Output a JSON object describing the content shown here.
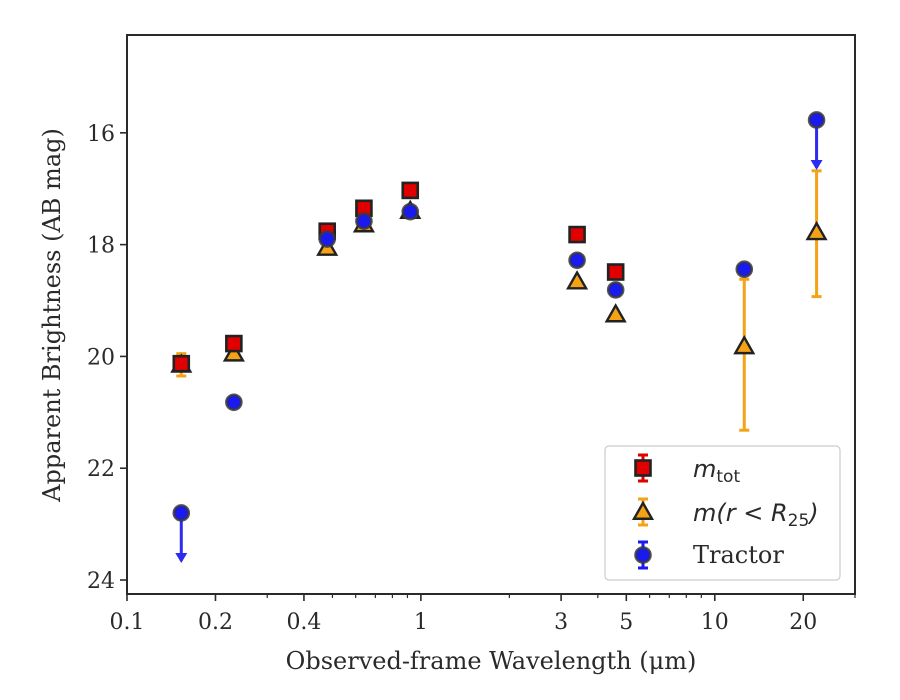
{
  "chart_data": {
    "type": "scatter",
    "xlabel": "Observed-frame Wavelength (μm)",
    "ylabel": "Apparent Brightness (AB mag)",
    "xscale": "log",
    "xlim": [
      0.1,
      30
    ],
    "ylim": [
      24.25,
      14.25
    ],
    "y_inverted": true,
    "x_ticks": [
      {
        "value": 0.1,
        "label": "0.1"
      },
      {
        "value": 0.2,
        "label": "0.2"
      },
      {
        "value": 0.4,
        "label": "0.4"
      },
      {
        "value": 1,
        "label": "1"
      },
      {
        "value": 3,
        "label": "3"
      },
      {
        "value": 5,
        "label": "5"
      },
      {
        "value": 10,
        "label": "10"
      },
      {
        "value": 20,
        "label": "20"
      }
    ],
    "y_ticks": [
      16,
      18,
      20,
      22,
      24
    ],
    "grid": false,
    "legend_position": "bottom-right",
    "series": [
      {
        "name": "m_tot",
        "marker": "square",
        "color": "#e00000",
        "points": [
          {
            "x": 0.153,
            "y": 20.13,
            "err": 0.12
          },
          {
            "x": 0.231,
            "y": 19.77
          },
          {
            "x": 0.48,
            "y": 17.76
          },
          {
            "x": 0.64,
            "y": 17.35
          },
          {
            "x": 0.92,
            "y": 17.03
          },
          {
            "x": 3.4,
            "y": 17.82
          },
          {
            "x": 4.6,
            "y": 18.49
          }
        ]
      },
      {
        "name": "m(r < R25)",
        "marker": "triangle",
        "color": "#f5a316",
        "points": [
          {
            "x": 0.153,
            "y": 20.15,
            "err": 0.2
          },
          {
            "x": 0.231,
            "y": 19.95
          },
          {
            "x": 0.48,
            "y": 18.06
          },
          {
            "x": 0.64,
            "y": 17.64
          },
          {
            "x": 0.92,
            "y": 17.4
          },
          {
            "x": 3.4,
            "y": 18.66
          },
          {
            "x": 4.6,
            "y": 19.25
          },
          {
            "x": 12.6,
            "y": 19.82,
            "err_up": 1.2,
            "err_down": 1.5
          },
          {
            "x": 22.2,
            "y": 17.78,
            "err_up": 1.1,
            "err_down": 1.15
          }
        ]
      },
      {
        "name": "Tractor",
        "marker": "circle",
        "color": "#1a1aee",
        "points": [
          {
            "x": 0.153,
            "y": 22.8,
            "upper_limit": true
          },
          {
            "x": 0.231,
            "y": 20.82
          },
          {
            "x": 0.48,
            "y": 17.9
          },
          {
            "x": 0.64,
            "y": 17.58
          },
          {
            "x": 0.92,
            "y": 17.41
          },
          {
            "x": 3.4,
            "y": 18.28
          },
          {
            "x": 4.6,
            "y": 18.81
          },
          {
            "x": 12.6,
            "y": 18.44
          },
          {
            "x": 22.2,
            "y": 15.77,
            "upper_limit": true
          }
        ]
      }
    ]
  },
  "legend": {
    "items": [
      {
        "math": "m",
        "sub": "tot"
      },
      {
        "math": "m(r < R",
        "sub": "25",
        "tail": ")"
      },
      {
        "text": "Tractor"
      }
    ]
  },
  "colors": {
    "axis": "#2a2a2a",
    "marker_edge": "#222222",
    "limit_arrow": "#2c2cf0",
    "legend_border": "#cccccc"
  }
}
